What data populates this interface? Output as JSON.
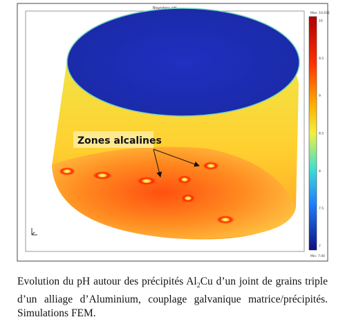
{
  "figure": {
    "title": "Boundary: pH",
    "max_label": "Max: 10.031",
    "min_label": "Min: 7.00",
    "colorbar_ticks": [
      "10",
      "9.5",
      "9",
      "8.5",
      "8",
      "7.5",
      "7"
    ],
    "annotation": "Zones alcalines"
  },
  "caption": {
    "parts": [
      "Evolution du pH autour des précipités Al",
      "2",
      "Cu d’un joint de grains triple d’un alliage d’Aluminium, couplage galvanique matrice/précipités. Simulations FEM."
    ]
  }
}
